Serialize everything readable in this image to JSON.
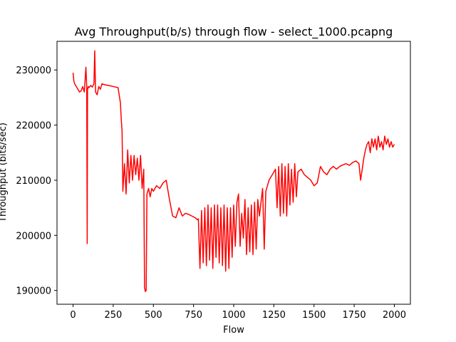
{
  "chart_data": {
    "type": "line",
    "title": "Avg Throughput(b/s) through flow - select_1000.pcapng",
    "xlabel": "Flow",
    "ylabel": "Throughput (bits/sec)",
    "xlim": [
      -100,
      2100
    ],
    "ylim": [
      187500,
      235200
    ],
    "xticks": [
      0,
      250,
      500,
      750,
      1000,
      1250,
      1500,
      1750,
      2000
    ],
    "xtick_labels": [
      "0",
      "250",
      "500",
      "750",
      "1000",
      "1250",
      "1500",
      "1750",
      "2000"
    ],
    "yticks": [
      190000,
      200000,
      210000,
      220000,
      230000
    ],
    "ytick_labels": [
      "190000",
      "200000",
      "210000",
      "220000",
      "230000"
    ],
    "grid": false,
    "legend": "none",
    "series": [
      {
        "color": "#ff0000",
        "x": [
          0,
          5,
          10,
          20,
          30,
          40,
          50,
          60,
          70,
          80,
          85,
          88,
          90,
          95,
          100,
          110,
          120,
          130,
          135,
          140,
          150,
          160,
          170,
          180,
          200,
          220,
          250,
          280,
          295,
          300,
          305,
          310,
          320,
          330,
          340,
          350,
          360,
          370,
          380,
          390,
          400,
          410,
          420,
          430,
          440,
          445,
          450,
          455,
          460,
          470,
          480,
          490,
          500,
          520,
          540,
          560,
          580,
          600,
          620,
          640,
          660,
          680,
          700,
          720,
          740,
          760,
          775,
          780,
          790,
          800,
          810,
          820,
          830,
          840,
          850,
          860,
          870,
          880,
          890,
          900,
          910,
          920,
          930,
          940,
          950,
          960,
          970,
          980,
          990,
          1000,
          1010,
          1020,
          1030,
          1040,
          1050,
          1060,
          1070,
          1080,
          1090,
          1100,
          1110,
          1120,
          1130,
          1140,
          1150,
          1160,
          1170,
          1180,
          1190,
          1200,
          1210,
          1220,
          1230,
          1240,
          1250,
          1260,
          1270,
          1280,
          1290,
          1300,
          1310,
          1320,
          1330,
          1340,
          1350,
          1360,
          1370,
          1380,
          1390,
          1400,
          1420,
          1440,
          1460,
          1480,
          1500,
          1520,
          1540,
          1560,
          1580,
          1600,
          1620,
          1640,
          1660,
          1680,
          1700,
          1720,
          1740,
          1760,
          1780,
          1790,
          1800,
          1810,
          1820,
          1830,
          1840,
          1850,
          1860,
          1870,
          1880,
          1890,
          1900,
          1910,
          1920,
          1930,
          1940,
          1950,
          1960,
          1970,
          1980,
          1990,
          2000
        ],
        "y": [
          229500,
          228000,
          227500,
          227000,
          226500,
          226000,
          226200,
          227000,
          226000,
          230500,
          227000,
          198500,
          226500,
          227000,
          226800,
          227200,
          226900,
          227500,
          233500,
          226000,
          225500,
          227000,
          226500,
          227500,
          227300,
          227200,
          227000,
          226800,
          224000,
          221000,
          219000,
          208000,
          213000,
          207500,
          215500,
          209500,
          214500,
          210000,
          214500,
          211000,
          214000,
          210000,
          214500,
          208500,
          212000,
          190500,
          189800,
          190000,
          207500,
          208500,
          207000,
          208500,
          208000,
          209000,
          208500,
          209500,
          210000,
          206500,
          203500,
          203200,
          205000,
          203500,
          204000,
          203800,
          203500,
          203200,
          202800,
          203000,
          194000,
          204500,
          195000,
          205000,
          194500,
          205500,
          195500,
          205000,
          194000,
          205500,
          196000,
          205500,
          195000,
          205000,
          194500,
          205500,
          193500,
          205000,
          194000,
          205000,
          196000,
          205500,
          198000,
          206000,
          207500,
          198000,
          204000,
          199500,
          206500,
          196500,
          205000,
          197000,
          205500,
          196500,
          206000,
          197500,
          206500,
          203500,
          206000,
          208500,
          197500,
          208000,
          209000,
          210000,
          210500,
          211000,
          211500,
          212000,
          205000,
          212500,
          203500,
          213000,
          204000,
          212500,
          203500,
          213000,
          205500,
          212000,
          206000,
          213000,
          207000,
          211500,
          212000,
          211000,
          210500,
          210000,
          209000,
          209500,
          212500,
          211500,
          211000,
          212000,
          212500,
          212000,
          212500,
          212800,
          213000,
          212700,
          213200,
          213500,
          213000,
          210000,
          212000,
          214000,
          215500,
          216500,
          217000,
          215000,
          217500,
          216000,
          217500,
          215500,
          218000,
          216000,
          217000,
          215500,
          218000,
          216500,
          217500,
          216000,
          217000,
          216000,
          216500
        ]
      }
    ]
  }
}
